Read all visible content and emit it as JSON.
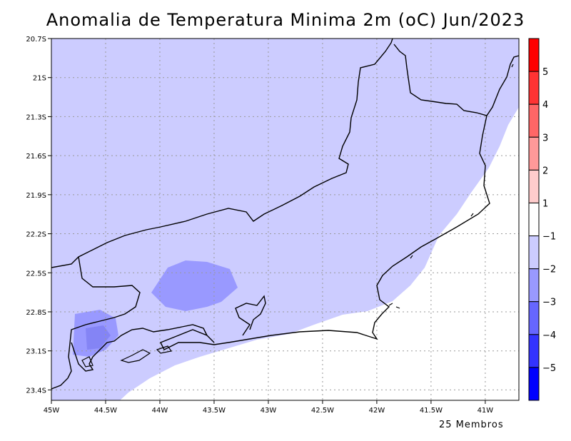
{
  "title": "Anomalia de Temperatura Minima 2m (oC) Jun/2023",
  "footer": "25 Membros",
  "map": {
    "lon_labels": [
      "45W",
      "44.5W",
      "44W",
      "43.5W",
      "43W",
      "42.5W",
      "42W",
      "41.5W",
      "41W"
    ],
    "lon_values": [
      -45,
      -44.5,
      -44,
      -43.5,
      -43,
      -42.5,
      -42,
      -41.5,
      -41
    ],
    "lat_labels": [
      "20.7S",
      "21S",
      "21.3S",
      "21.6S",
      "21.9S",
      "22.2S",
      "22.5S",
      "22.8S",
      "23.1S",
      "23.4S"
    ],
    "lat_values": [
      -20.7,
      -21,
      -21.3,
      -21.6,
      -21.9,
      -22.2,
      -22.5,
      -22.8,
      -23.1,
      -23.4
    ],
    "lon_range": [
      -45,
      -40.69
    ],
    "lat_range": [
      -23.48,
      -20.7
    ]
  },
  "colorbar": {
    "labels": [
      "5",
      "4",
      "3",
      "2",
      "1",
      "-1",
      "-2",
      "-3",
      "-4",
      "-5"
    ],
    "colors": [
      "#ff0000",
      "#ff3333",
      "#ff6666",
      "#ff9999",
      "#ffcccc",
      "#ffffff",
      "#ccccff",
      "#9999ff",
      "#6666ff",
      "#3333ff",
      "#0000ff"
    ]
  }
}
